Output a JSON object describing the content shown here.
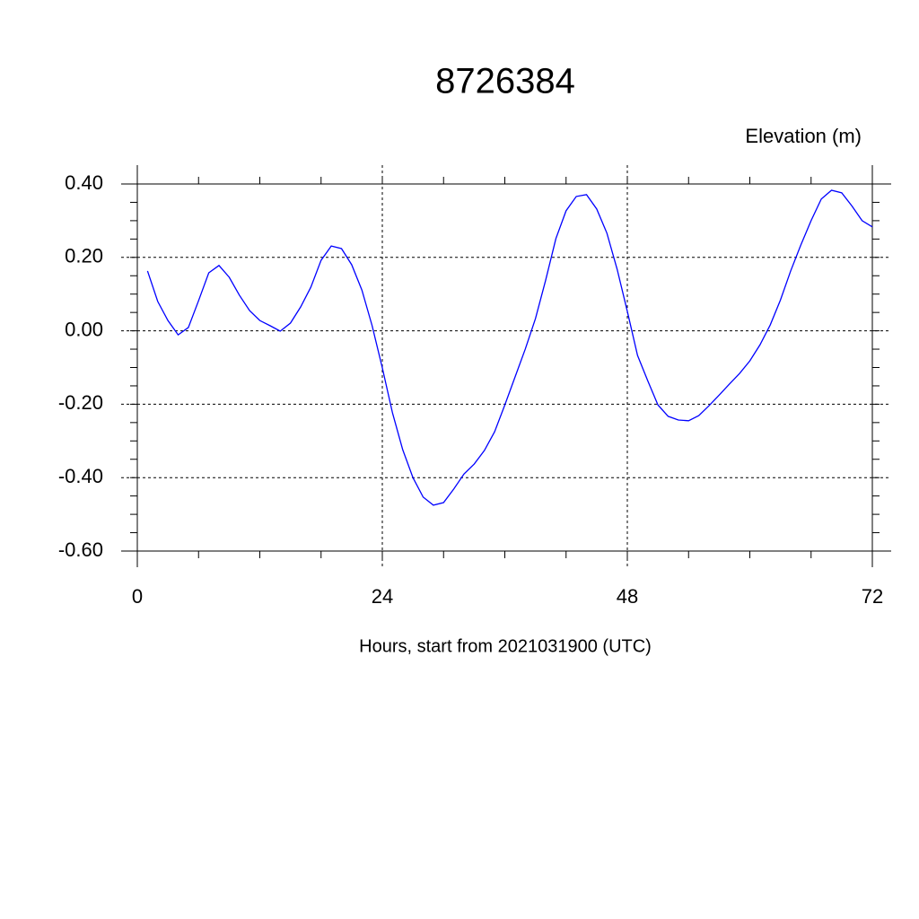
{
  "chart_data": {
    "type": "line",
    "title": "8726384",
    "y_label": "Elevation (m)",
    "x_label": "Hours, start from 2021031900 (UTC)",
    "xlim": [
      0,
      72
    ],
    "xticks": [
      0,
      24,
      48,
      72
    ],
    "ylim": [
      -0.6,
      0.4
    ],
    "yticks": [
      {
        "value": -0.6,
        "label": "-0.60"
      },
      {
        "value": -0.4,
        "label": "-0.40"
      },
      {
        "value": -0.2,
        "label": "-0.20"
      },
      {
        "value": 0,
        "label": "0.00"
      },
      {
        "value": 0.2,
        "label": "0.20"
      },
      {
        "value": 0.4,
        "label": "0.40"
      }
    ],
    "grid": true,
    "x": [
      1,
      2,
      3,
      4,
      5,
      6,
      7,
      8,
      9,
      10,
      11,
      12,
      13,
      14,
      15,
      16,
      17,
      18,
      19,
      20,
      21,
      22,
      23,
      24,
      25,
      26,
      27,
      28,
      29,
      30,
      31,
      32,
      33,
      34,
      35,
      36,
      37,
      38,
      39,
      40,
      41,
      42,
      43,
      44,
      45,
      46,
      47,
      48,
      49,
      50,
      51,
      52,
      53,
      54,
      55,
      56,
      57,
      58,
      59,
      60,
      61,
      62,
      63,
      64,
      65,
      66,
      67,
      68,
      69,
      70,
      71,
      72
    ],
    "series": [
      {
        "color": "#0000ff",
        "values": [
          0.163,
          0.08,
          0.028,
          -0.011,
          0.009,
          0.082,
          0.158,
          0.178,
          0.146,
          0.097,
          0.055,
          0.028,
          0.014,
          -0.001,
          0.021,
          0.065,
          0.119,
          0.192,
          0.231,
          0.224,
          0.18,
          0.111,
          0.014,
          -0.101,
          -0.224,
          -0.324,
          -0.4,
          -0.453,
          -0.475,
          -0.468,
          -0.431,
          -0.39,
          -0.363,
          -0.326,
          -0.275,
          -0.202,
          -0.126,
          -0.05,
          0.033,
          0.138,
          0.251,
          0.327,
          0.366,
          0.371,
          0.332,
          0.266,
          0.168,
          0.053,
          -0.067,
          -0.136,
          -0.202,
          -0.233,
          -0.243,
          -0.245,
          -0.231,
          -0.204,
          -0.175,
          -0.145,
          -0.116,
          -0.082,
          -0.038,
          0.016,
          0.084,
          0.163,
          0.234,
          0.3,
          0.359,
          0.383,
          0.376,
          0.34,
          0.3,
          0.283
        ]
      }
    ]
  }
}
